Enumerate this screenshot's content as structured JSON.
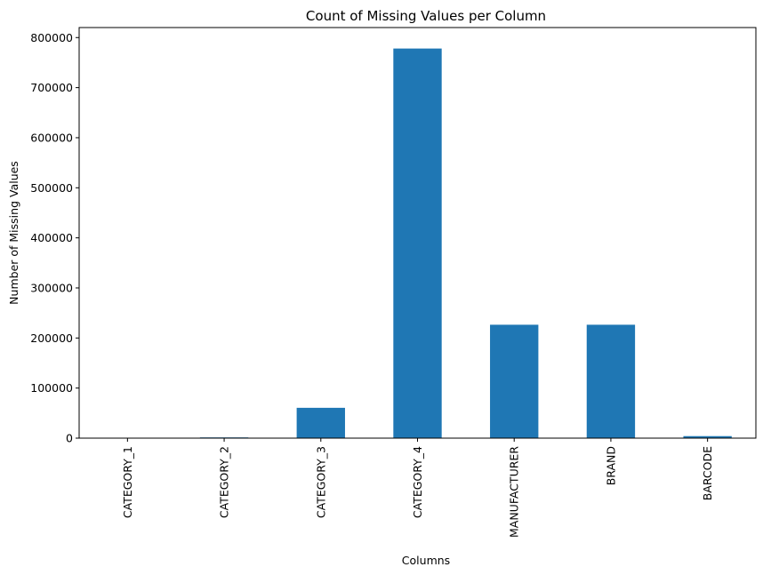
{
  "chart_data": {
    "type": "bar",
    "title": "Count of Missing Values per Column",
    "xlabel": "Columns",
    "ylabel": "Number of Missing Values",
    "categories": [
      "CATEGORY_1",
      "CATEGORY_2",
      "CATEGORY_3",
      "CATEGORY_4",
      "MANUFACTURER",
      "BRAND",
      "BARCODE"
    ],
    "values": [
      111,
      1424,
      60566,
      778093,
      226474,
      226472,
      4025
    ],
    "ylim": [
      0,
      820000
    ],
    "yticks": [
      0,
      100000,
      200000,
      300000,
      400000,
      500000,
      600000,
      700000,
      800000
    ],
    "ytick_labels": [
      "0",
      "100000",
      "200000",
      "300000",
      "400000",
      "500000",
      "600000",
      "700000",
      "800000"
    ],
    "grid": false,
    "legend": "none",
    "bar_color": "#1f77b4"
  }
}
